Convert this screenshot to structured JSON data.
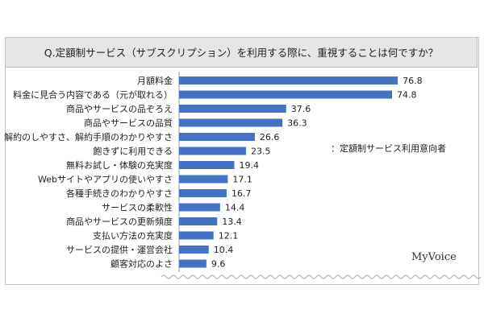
{
  "chart_data": {
    "type": "bar",
    "orientation": "horizontal",
    "title": "Q.定額制サービス（サブスクリプション）を利用する際に、重視することは何ですか？",
    "categories": [
      "月額料金",
      "料金に見合う内容である（元が取れる）",
      "商品やサービスの品ぞろえ",
      "商品やサービスの品質",
      "解約のしやすさ、解約手順のわかりやすさ",
      "飽きずに利用できる",
      "無料お試し・体験の充実度",
      "Webサイトやアプリの使いやすさ",
      "各種手続きのわかりやすさ",
      "サービスの柔軟性",
      "商品やサービスの更新頻度",
      "支払い方法の充実度",
      "サービスの提供・運営会社",
      "顧客対応のよさ"
    ],
    "values": [
      76.8,
      74.8,
      37.6,
      36.3,
      26.6,
      23.5,
      19.4,
      17.1,
      16.7,
      14.4,
      13.4,
      12.1,
      10.4,
      9.6
    ],
    "value_labels": [
      "76.8",
      "74.8",
      "37.6",
      "36.3",
      "26.6",
      "23.5",
      "19.4",
      "17.1",
      "16.7",
      "14.4",
      "13.4",
      "12.1",
      "10.4",
      "9.6"
    ],
    "xlim": [
      0,
      100
    ],
    "grid": false,
    "bar_color": "#4472c4",
    "note": "：定額制サービス利用意向者"
  },
  "brand": "MyVoice"
}
